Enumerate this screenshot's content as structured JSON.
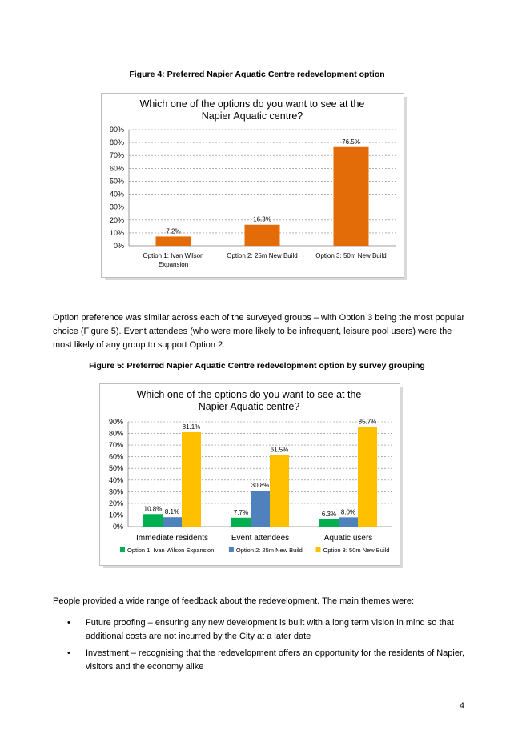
{
  "figure4": {
    "caption": "Figure 4: Preferred Napier Aquatic Centre redevelopment option"
  },
  "figure5": {
    "caption": "Figure 5: Preferred Napier Aquatic Centre redevelopment option by survey grouping"
  },
  "paragraph1": "Option preference was similar across each of the surveyed groups – with Option 3 being the most popular choice (Figure 5). Event attendees (who were more likely to be infrequent, leisure pool users) were the most likely of any group to support Option 2.",
  "paragraph2": "People provided a wide range of feedback about the redevelopment. The main themes were:",
  "bullets": [
    "Future proofing – ensuring any new development is built with a long term vision in mind so that additional costs are not incurred by the City at a later date",
    "Investment – recognising that the redevelopment offers an opportunity for the residents of Napier, visitors and the economy alike"
  ],
  "bullet_symbol": "•",
  "page_number": "4",
  "chart_data": [
    {
      "type": "bar",
      "title_lines": [
        "Which one of the options do you want to see at the",
        "Napier Aquatic centre?"
      ],
      "categories": [
        [
          "Option 1: Ivan Wilson",
          "Expansion"
        ],
        [
          "Option 2: 25m New Build"
        ],
        [
          "Option 3: 50m New Build"
        ]
      ],
      "values": [
        7.2,
        16.3,
        76.5
      ],
      "value_labels": [
        "7.2%",
        "16.3%",
        "76.5%"
      ],
      "color": "#e36c09",
      "yticks": [
        "0%",
        "10%",
        "20%",
        "30%",
        "40%",
        "50%",
        "60%",
        "70%",
        "80%",
        "90%"
      ],
      "ylim": [
        0,
        90
      ],
      "grid": true
    },
    {
      "type": "bar",
      "title_lines": [
        "Which one of the options do you want to see at the",
        "Napier Aquatic centre?"
      ],
      "categories": [
        "Immediate residents",
        "Event attendees",
        "Aquatic users"
      ],
      "series": [
        {
          "name": "Option 1: Ivan Wilson Expansion",
          "color": "#00b050",
          "values": [
            10.8,
            7.7,
            6.3
          ],
          "labels": [
            "10.8%",
            "7.7%",
            "6.3%"
          ]
        },
        {
          "name": "Option 2:  25m New Build",
          "color": "#4f81bd",
          "values": [
            8.1,
            30.8,
            8.0
          ],
          "labels": [
            "8.1%",
            "30.8%",
            "8.0%"
          ]
        },
        {
          "name": "Option 3: 50m New Build",
          "color": "#ffc000",
          "values": [
            81.1,
            61.5,
            85.7
          ],
          "labels": [
            "81.1%",
            "61.5%",
            "85.7%"
          ]
        }
      ],
      "yticks": [
        "0%",
        "10%",
        "20%",
        "30%",
        "40%",
        "50%",
        "60%",
        "70%",
        "80%",
        "90%"
      ],
      "ylim": [
        0,
        90
      ],
      "grid": true,
      "legend_position": "bottom"
    }
  ]
}
